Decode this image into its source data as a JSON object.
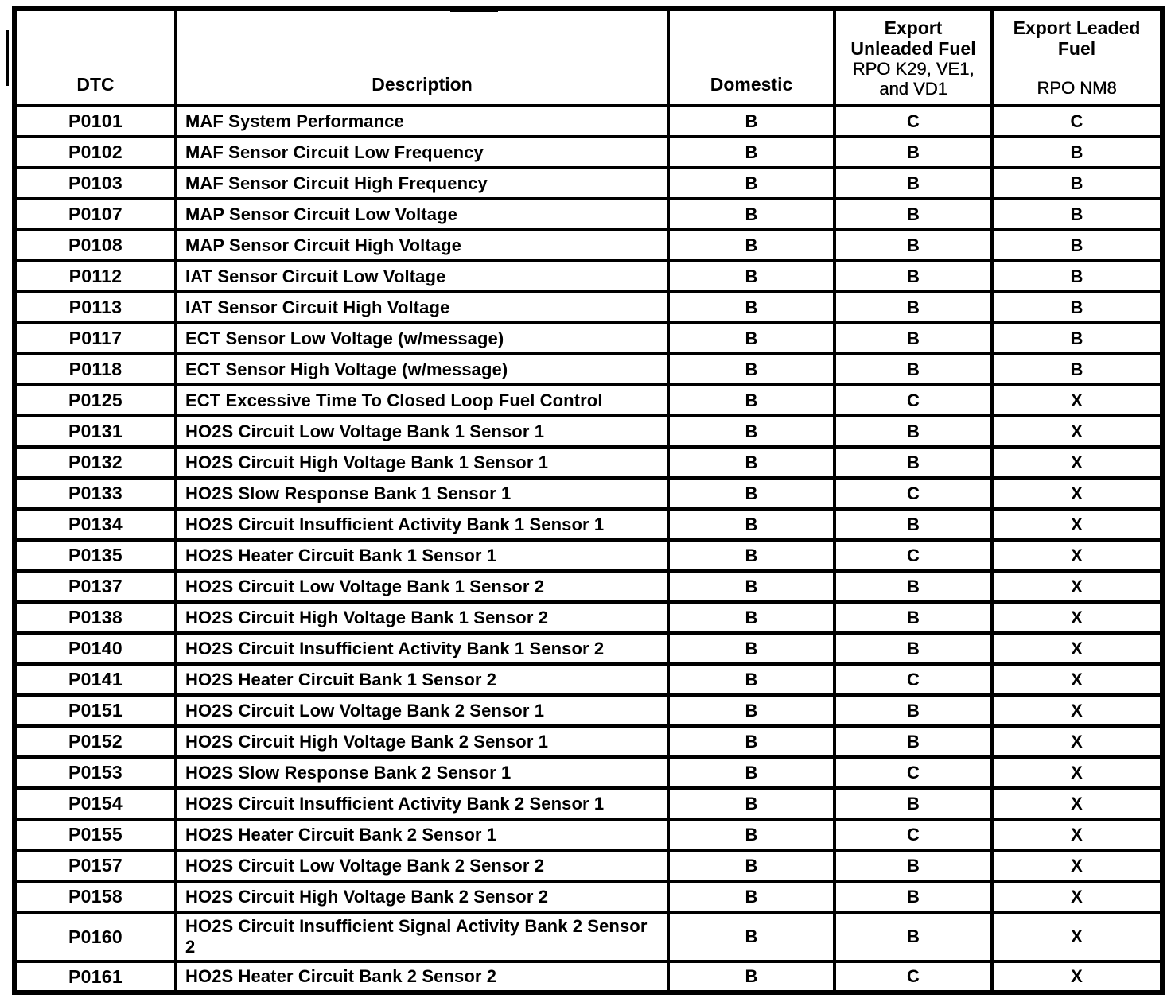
{
  "colors": {
    "border": "#000000",
    "text": "#000000",
    "background": "#ffffff"
  },
  "table": {
    "headers": {
      "dtc": "DTC",
      "description": "Description",
      "domestic": "Domestic",
      "export_unleaded": {
        "title_line1": "Export",
        "title_line2": "Unleaded Fuel",
        "rpo_line1": "RPO K29, VE1,",
        "rpo_line2": "and VD1"
      },
      "export_leaded": {
        "title_line1": "Export Leaded",
        "title_line2": "Fuel",
        "rpo": "RPO NM8"
      }
    },
    "rows": [
      {
        "dtc": "P0101",
        "description": "MAF System Performance",
        "domestic": "B",
        "export_unleaded": "C",
        "export_leaded": "C"
      },
      {
        "dtc": "P0102",
        "description": "MAF Sensor Circuit Low Frequency",
        "domestic": "B",
        "export_unleaded": "B",
        "export_leaded": "B"
      },
      {
        "dtc": "P0103",
        "description": "MAF Sensor Circuit High Frequency",
        "domestic": "B",
        "export_unleaded": "B",
        "export_leaded": "B"
      },
      {
        "dtc": "P0107",
        "description": "MAP Sensor Circuit Low Voltage",
        "domestic": "B",
        "export_unleaded": "B",
        "export_leaded": "B"
      },
      {
        "dtc": "P0108",
        "description": "MAP Sensor Circuit High Voltage",
        "domestic": "B",
        "export_unleaded": "B",
        "export_leaded": "B"
      },
      {
        "dtc": "P0112",
        "description": "IAT Sensor Circuit Low Voltage",
        "domestic": "B",
        "export_unleaded": "B",
        "export_leaded": "B"
      },
      {
        "dtc": "P0113",
        "description": "IAT Sensor Circuit High Voltage",
        "domestic": "B",
        "export_unleaded": "B",
        "export_leaded": "B"
      },
      {
        "dtc": "P0117",
        "description": "ECT Sensor Low Voltage (w/message)",
        "domestic": "B",
        "export_unleaded": "B",
        "export_leaded": "B"
      },
      {
        "dtc": "P0118",
        "description": "ECT Sensor High Voltage (w/message)",
        "domestic": "B",
        "export_unleaded": "B",
        "export_leaded": "B"
      },
      {
        "dtc": "P0125",
        "description": "ECT Excessive Time To Closed Loop Fuel Control",
        "domestic": "B",
        "export_unleaded": "C",
        "export_leaded": "X"
      },
      {
        "dtc": "P0131",
        "description": "HO2S Circuit Low Voltage Bank 1 Sensor 1",
        "domestic": "B",
        "export_unleaded": "B",
        "export_leaded": "X"
      },
      {
        "dtc": "P0132",
        "description": "HO2S Circuit High Voltage Bank 1 Sensor 1",
        "domestic": "B",
        "export_unleaded": "B",
        "export_leaded": "X"
      },
      {
        "dtc": "P0133",
        "description": "HO2S Slow Response Bank 1 Sensor 1",
        "domestic": "B",
        "export_unleaded": "C",
        "export_leaded": "X"
      },
      {
        "dtc": "P0134",
        "description": "HO2S Circuit Insufficient Activity Bank 1 Sensor 1",
        "domestic": "B",
        "export_unleaded": "B",
        "export_leaded": "X"
      },
      {
        "dtc": "P0135",
        "description": "HO2S Heater Circuit Bank 1 Sensor 1",
        "domestic": "B",
        "export_unleaded": "C",
        "export_leaded": "X"
      },
      {
        "dtc": "P0137",
        "description": "HO2S Circuit Low Voltage Bank 1 Sensor 2",
        "domestic": "B",
        "export_unleaded": "B",
        "export_leaded": "X"
      },
      {
        "dtc": "P0138",
        "description": "HO2S Circuit High Voltage Bank 1 Sensor 2",
        "domestic": "B",
        "export_unleaded": "B",
        "export_leaded": "X"
      },
      {
        "dtc": "P0140",
        "description": "HO2S Circuit Insufficient Activity Bank 1 Sensor 2",
        "domestic": "B",
        "export_unleaded": "B",
        "export_leaded": "X"
      },
      {
        "dtc": "P0141",
        "description": "HO2S Heater Circuit Bank 1 Sensor 2",
        "domestic": "B",
        "export_unleaded": "C",
        "export_leaded": "X"
      },
      {
        "dtc": "P0151",
        "description": "HO2S Circuit Low Voltage Bank 2 Sensor 1",
        "domestic": "B",
        "export_unleaded": "B",
        "export_leaded": "X"
      },
      {
        "dtc": "P0152",
        "description": "HO2S Circuit High Voltage Bank 2 Sensor 1",
        "domestic": "B",
        "export_unleaded": "B",
        "export_leaded": "X"
      },
      {
        "dtc": "P0153",
        "description": "HO2S Slow Response Bank 2 Sensor 1",
        "domestic": "B",
        "export_unleaded": "C",
        "export_leaded": "X"
      },
      {
        "dtc": "P0154",
        "description": "HO2S Circuit Insufficient Activity Bank 2 Sensor 1",
        "domestic": "B",
        "export_unleaded": "B",
        "export_leaded": "X"
      },
      {
        "dtc": "P0155",
        "description": "HO2S Heater Circuit Bank 2 Sensor 1",
        "domestic": "B",
        "export_unleaded": "C",
        "export_leaded": "X"
      },
      {
        "dtc": "P0157",
        "description": "HO2S Circuit Low Voltage Bank 2 Sensor 2",
        "domestic": "B",
        "export_unleaded": "B",
        "export_leaded": "X"
      },
      {
        "dtc": "P0158",
        "description": "HO2S Circuit High Voltage Bank 2 Sensor 2",
        "domestic": "B",
        "export_unleaded": "B",
        "export_leaded": "X"
      },
      {
        "dtc": "P0160",
        "description": "HO2S Circuit Insufficient Signal Activity Bank 2 Sensor 2",
        "domestic": "B",
        "export_unleaded": "B",
        "export_leaded": "X"
      },
      {
        "dtc": "P0161",
        "description": "HO2S Heater Circuit Bank 2 Sensor 2",
        "domestic": "B",
        "export_unleaded": "C",
        "export_leaded": "X"
      }
    ]
  }
}
